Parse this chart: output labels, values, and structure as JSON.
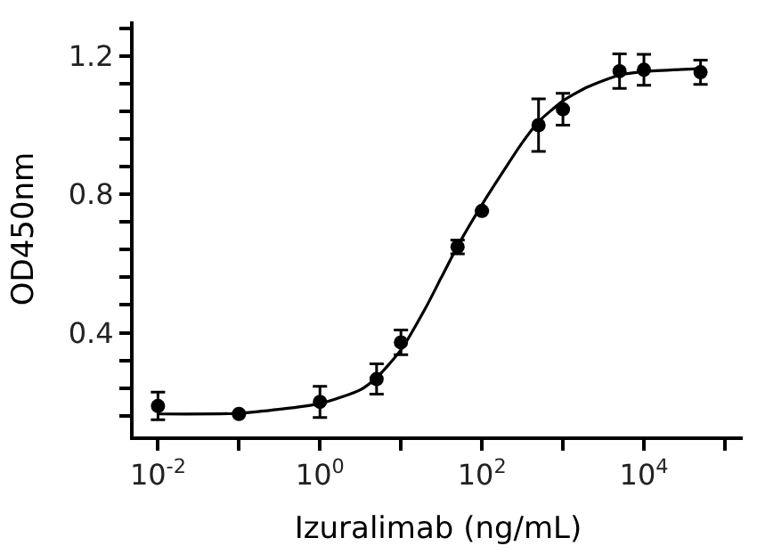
{
  "chart_data": {
    "type": "scatter",
    "xlabel": "Izuralimab (ng/mL)",
    "ylabel": "OD450nm",
    "log": "x",
    "marker": "circle",
    "xlim": [
      0.005,
      166000
    ],
    "ylim": [
      0.1,
      1.3
    ],
    "xticks": [
      {
        "value": 0.01,
        "label": "10$^{-2}$"
      },
      {
        "value": 0.1,
        "label": null
      },
      {
        "value": 1,
        "label": "10$^{0}$"
      },
      {
        "value": 10,
        "label": null
      },
      {
        "value": 100,
        "label": "10$^{2}$"
      },
      {
        "value": 1000,
        "label": null
      },
      {
        "value": 10000,
        "label": "10$^{4}$"
      },
      {
        "value": 100000,
        "label": null
      }
    ],
    "yticks": [
      {
        "value": 0.16,
        "label": null
      },
      {
        "value": 0.24,
        "label": null
      },
      {
        "value": 0.32,
        "label": null
      },
      0.4,
      {
        "value": 0.48,
        "label": null
      },
      {
        "value": 0.56,
        "label": null
      },
      {
        "value": 0.64,
        "label": null
      },
      {
        "value": 0.72,
        "label": null
      },
      0.8,
      {
        "value": 0.88,
        "label": null
      },
      {
        "value": 0.96,
        "label": null
      },
      {
        "value": 1.04,
        "label": null
      },
      {
        "value": 1.12,
        "label": null
      },
      1.2,
      {
        "value": 1.28,
        "label": null
      }
    ],
    "series": [
      {
        "color": "#000000",
        "x": [
          0.01,
          0.1,
          1,
          5,
          10,
          50,
          100,
          500,
          1000,
          5000,
          10000,
          50000
        ],
        "values": [
          0.188,
          0.165,
          0.2,
          0.266,
          0.372,
          0.648,
          0.752,
          1.0,
          1.046,
          1.156,
          1.16,
          1.153
        ],
        "errors": [
          0.04,
          null,
          0.045,
          0.044,
          0.036,
          0.02,
          null,
          0.076,
          0.046,
          0.05,
          0.045,
          0.035
        ]
      },
      {
        "type": "line",
        "color": "#000000",
        "marker": "none",
        "x": [
          0.01,
          0.1,
          1,
          3.16,
          5,
          10,
          20,
          31.6,
          50,
          100,
          200,
          316,
          500,
          1000,
          2000,
          5000,
          10000,
          50000
        ],
        "values": [
          0.165,
          0.167,
          0.195,
          0.235,
          0.27,
          0.35,
          0.47,
          0.56,
          0.65,
          0.77,
          0.88,
          0.95,
          1.01,
          1.07,
          1.11,
          1.145,
          1.155,
          1.163
        ]
      }
    ]
  }
}
